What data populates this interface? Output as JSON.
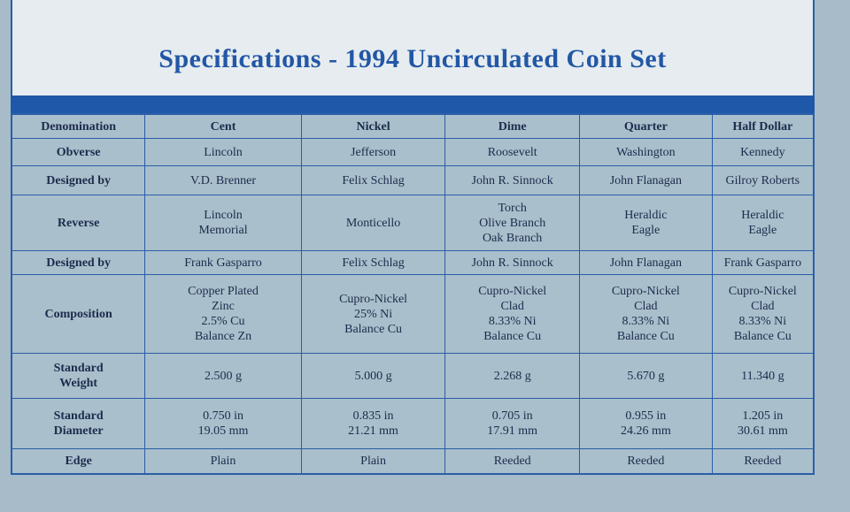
{
  "header": {
    "title": "Specifications - 1994 Uncirculated Coin Set"
  },
  "table": {
    "columns": [
      "Denomination",
      "Cent",
      "Nickel",
      "Dime",
      "Quarter",
      "Half Dollar"
    ],
    "rows": [
      {
        "label": [
          "Obverse"
        ],
        "cells": [
          [
            "Lincoln"
          ],
          [
            "Jefferson"
          ],
          [
            "Roosevelt"
          ],
          [
            "Washington"
          ],
          [
            "Kennedy"
          ]
        ]
      },
      {
        "label": [
          "Designed by"
        ],
        "cells": [
          [
            "V.D. Brenner"
          ],
          [
            "Felix Schlag"
          ],
          [
            "John R. Sinnock"
          ],
          [
            "John Flanagan"
          ],
          [
            "Gilroy Roberts"
          ]
        ]
      },
      {
        "label": [
          "Reverse"
        ],
        "cells": [
          [
            "Lincoln",
            "Memorial"
          ],
          [
            "Monticello"
          ],
          [
            "Torch",
            "Olive Branch",
            "Oak Branch"
          ],
          [
            "Heraldic",
            "Eagle"
          ],
          [
            "Heraldic",
            "Eagle"
          ]
        ]
      },
      {
        "label": [
          "Designed by"
        ],
        "cells": [
          [
            "Frank Gasparro"
          ],
          [
            "Felix Schlag"
          ],
          [
            "John R. Sinnock"
          ],
          [
            "John Flanagan"
          ],
          [
            "Frank Gasparro"
          ]
        ]
      },
      {
        "label": [
          "Composition"
        ],
        "cells": [
          [
            "Copper Plated",
            "Zinc",
            "2.5% Cu",
            "Balance Zn"
          ],
          [
            "Cupro-Nickel",
            "25% Ni",
            "Balance Cu"
          ],
          [
            "Cupro-Nickel",
            "Clad",
            "8.33% Ni",
            "Balance Cu"
          ],
          [
            "Cupro-Nickel",
            "Clad",
            "8.33% Ni",
            "Balance Cu"
          ],
          [
            "Cupro-Nickel",
            "Clad",
            "8.33% Ni",
            "Balance Cu"
          ]
        ]
      },
      {
        "label": [
          "Standard",
          "Weight"
        ],
        "cells": [
          [
            "2.500 g"
          ],
          [
            "5.000 g"
          ],
          [
            "2.268 g"
          ],
          [
            "5.670 g"
          ],
          [
            "11.340 g"
          ]
        ]
      },
      {
        "label": [
          "Standard",
          "Diameter"
        ],
        "cells": [
          [
            "0.750 in",
            "19.05 mm"
          ],
          [
            "0.835 in",
            "21.21 mm"
          ],
          [
            "0.705 in",
            "17.91 mm"
          ],
          [
            "0.955 in",
            "24.26 mm"
          ],
          [
            "1.205 in",
            "30.61 mm"
          ]
        ]
      },
      {
        "label": [
          "Edge"
        ],
        "cells": [
          [
            "Plain"
          ],
          [
            "Plain"
          ],
          [
            "Reeded"
          ],
          [
            "Reeded"
          ],
          [
            "Reeded"
          ]
        ]
      }
    ]
  }
}
